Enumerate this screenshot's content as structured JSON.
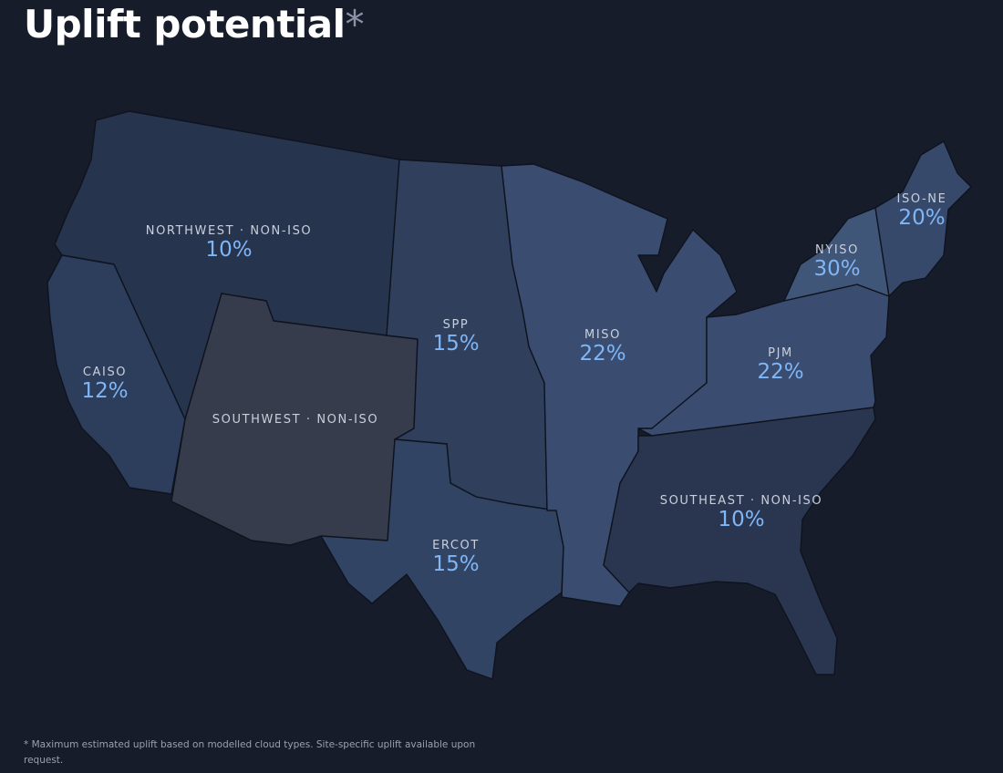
{
  "title": "Uplift potential",
  "title_mark": "*",
  "footnote": "* Maximum estimated uplift based on modelled cloud types. Site-specific uplift available upon request.",
  "regions": [
    {
      "id": "northwest",
      "name": "NORTHWEST · NON-ISO",
      "value": "10%",
      "color": "#27344d"
    },
    {
      "id": "caiso",
      "name": "CAISO",
      "value": "12%",
      "color": "#2d3d5c"
    },
    {
      "id": "southwest",
      "name": "SOUTHWEST · NON-ISO",
      "value": "",
      "color": "#363c4b"
    },
    {
      "id": "spp",
      "name": "SPP",
      "value": "15%",
      "color": "#2f3f5c"
    },
    {
      "id": "ercot",
      "name": "ERCOT",
      "value": "15%",
      "color": "#324464"
    },
    {
      "id": "miso",
      "name": "MISO",
      "value": "22%",
      "color": "#3a4d70"
    },
    {
      "id": "pjm",
      "name": "PJM",
      "value": "22%",
      "color": "#3a4d70"
    },
    {
      "id": "nyiso",
      "name": "NYISO",
      "value": "30%",
      "color": "#405679"
    },
    {
      "id": "isone",
      "name": "ISO-NE",
      "value": "20%",
      "color": "#37496a"
    },
    {
      "id": "southeast",
      "name": "SOUTHEAST · NON-ISO",
      "value": "10%",
      "color": "#2a3650"
    }
  ],
  "colors": {
    "background": "#161c2a",
    "label_value": "#7fb6f7",
    "label_name": "#c9d0dc"
  }
}
